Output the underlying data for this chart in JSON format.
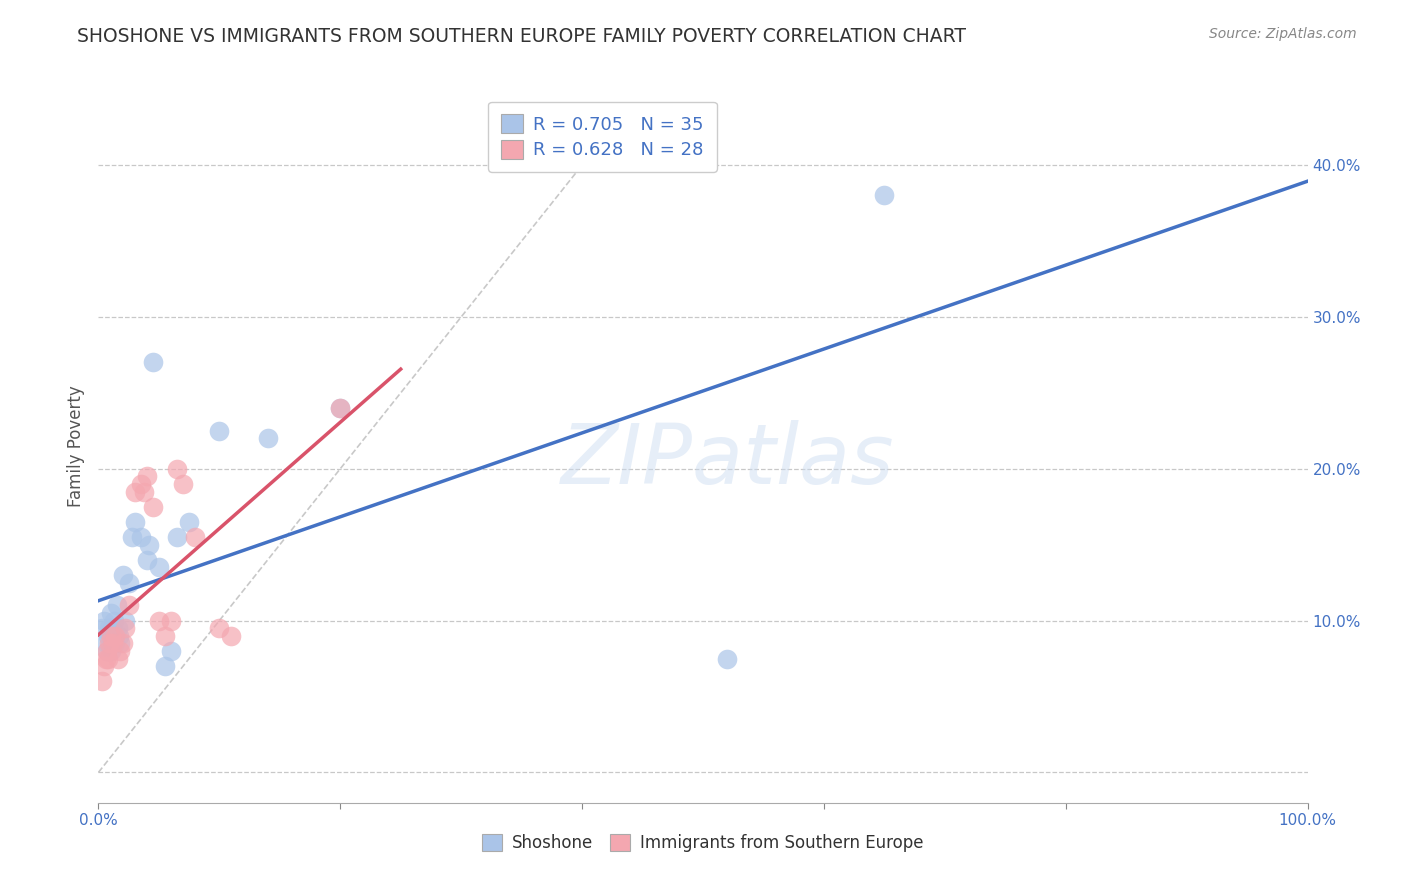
{
  "title": "SHOSHONE VS IMMIGRANTS FROM SOUTHERN EUROPE FAMILY POVERTY CORRELATION CHART",
  "source": "Source: ZipAtlas.com",
  "ylabel": "Family Poverty",
  "xlim": [
    0,
    1.0
  ],
  "ylim": [
    -0.02,
    0.45
  ],
  "x_ticks": [
    0.0,
    0.2,
    0.4,
    0.6,
    0.8,
    1.0
  ],
  "x_tick_labels": [
    "0.0%",
    "",
    "",
    "",
    "",
    "100.0%"
  ],
  "y_ticks": [
    0.0,
    0.1,
    0.2,
    0.3,
    0.4
  ],
  "y_tick_labels": [
    "",
    "10.0%",
    "20.0%",
    "30.0%",
    "40.0%"
  ],
  "shoshone_R": 0.705,
  "shoshone_N": 35,
  "immigrants_R": 0.628,
  "immigrants_N": 28,
  "watermark": "ZIPatlas",
  "background_color": "#ffffff",
  "plot_bg_color": "#ffffff",
  "grid_color": "#c8c8c8",
  "shoshone_color": "#aac4e8",
  "shoshone_line_color": "#4472c4",
  "immigrants_color": "#f4a7b0",
  "immigrants_line_color": "#d9536a",
  "diagonal_color": "#bbbbbb",
  "shoshone_points_x": [
    0.003,
    0.005,
    0.006,
    0.007,
    0.008,
    0.009,
    0.01,
    0.01,
    0.011,
    0.012,
    0.013,
    0.014,
    0.015,
    0.016,
    0.017,
    0.018,
    0.02,
    0.022,
    0.025,
    0.028,
    0.03,
    0.035,
    0.04,
    0.042,
    0.045,
    0.05,
    0.055,
    0.06,
    0.065,
    0.075,
    0.1,
    0.14,
    0.2,
    0.52,
    0.65
  ],
  "shoshone_points_y": [
    0.095,
    0.1,
    0.085,
    0.08,
    0.09,
    0.095,
    0.105,
    0.08,
    0.095,
    0.09,
    0.1,
    0.085,
    0.11,
    0.095,
    0.09,
    0.085,
    0.13,
    0.1,
    0.125,
    0.155,
    0.165,
    0.155,
    0.14,
    0.15,
    0.27,
    0.135,
    0.07,
    0.08,
    0.155,
    0.165,
    0.225,
    0.22,
    0.24,
    0.075,
    0.38
  ],
  "immigrants_points_x": [
    0.003,
    0.005,
    0.006,
    0.007,
    0.008,
    0.009,
    0.01,
    0.012,
    0.014,
    0.016,
    0.018,
    0.02,
    0.022,
    0.025,
    0.03,
    0.035,
    0.038,
    0.04,
    0.045,
    0.05,
    0.055,
    0.06,
    0.065,
    0.07,
    0.08,
    0.1,
    0.11,
    0.2
  ],
  "immigrants_points_y": [
    0.06,
    0.07,
    0.075,
    0.08,
    0.075,
    0.085,
    0.09,
    0.085,
    0.09,
    0.075,
    0.08,
    0.085,
    0.095,
    0.11,
    0.185,
    0.19,
    0.185,
    0.195,
    0.175,
    0.1,
    0.09,
    0.1,
    0.2,
    0.19,
    0.155,
    0.095,
    0.09,
    0.24
  ],
  "shoshone_line_x0": 0.0,
  "shoshone_line_x1": 1.0,
  "immigrants_line_x0": 0.0,
  "immigrants_line_x1": 0.25
}
